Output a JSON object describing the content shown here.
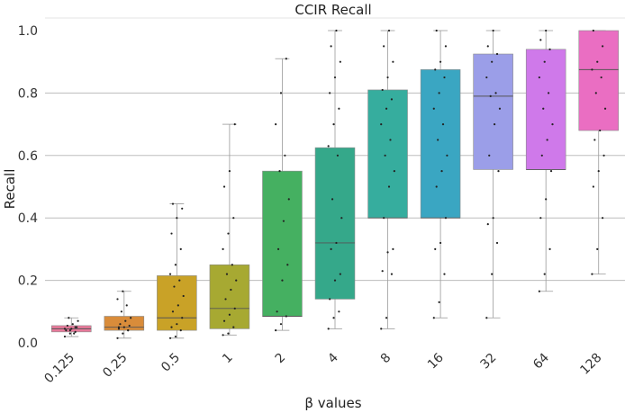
{
  "chart_data": {
    "type": "box",
    "title": "CCIR Recall",
    "xlabel": "β values",
    "ylabel": "Recall",
    "ylim": [
      0.0,
      1.0
    ],
    "yticks": [
      "0.0",
      "0.2",
      "0.4",
      "0.6",
      "0.8",
      "1.0"
    ],
    "categories": [
      "0.125",
      "0.25",
      "0.5",
      "1",
      "2",
      "4",
      "8",
      "16",
      "32",
      "64",
      "128"
    ],
    "colors": [
      "#e8799a",
      "#d98c3a",
      "#c9a227",
      "#a7a932",
      "#45b061",
      "#35a88a",
      "#36ad9e",
      "#3aa6c2",
      "#9b9ee8",
      "#cf79ea",
      "#ea6ec2"
    ],
    "boxes": [
      {
        "min": 0.02,
        "q1": 0.035,
        "median": 0.045,
        "q3": 0.055,
        "max": 0.08
      },
      {
        "min": 0.015,
        "q1": 0.04,
        "median": 0.05,
        "q3": 0.085,
        "max": 0.165
      },
      {
        "min": 0.015,
        "q1": 0.04,
        "median": 0.08,
        "q3": 0.215,
        "max": 0.445
      },
      {
        "min": 0.025,
        "q1": 0.045,
        "median": 0.11,
        "q3": 0.25,
        "max": 0.7
      },
      {
        "min": 0.04,
        "q1": 0.085,
        "median": 0.085,
        "q3": 0.55,
        "max": 0.91
      },
      {
        "min": 0.045,
        "q1": 0.14,
        "median": 0.32,
        "q3": 0.625,
        "max": 1.0
      },
      {
        "min": 0.045,
        "q1": 0.4,
        "median": 0.4,
        "q3": 0.81,
        "max": 1.0
      },
      {
        "min": 0.08,
        "q1": 0.4,
        "median": 0.4,
        "q3": 0.875,
        "max": 1.0
      },
      {
        "min": 0.08,
        "q1": 0.555,
        "median": 0.79,
        "q3": 0.925,
        "max": 1.0
      },
      {
        "min": 0.165,
        "q1": 0.555,
        "median": 0.555,
        "q3": 0.94,
        "max": 1.0
      },
      {
        "min": 0.22,
        "q1": 0.68,
        "median": 0.875,
        "q3": 1.0,
        "max": 1.0
      }
    ],
    "points": [
      [
        0.02,
        0.03,
        0.035,
        0.04,
        0.045,
        0.05,
        0.055,
        0.06,
        0.07,
        0.08,
        0.03,
        0.045,
        0.04,
        0.05
      ],
      [
        0.015,
        0.03,
        0.04,
        0.045,
        0.05,
        0.055,
        0.06,
        0.07,
        0.08,
        0.1,
        0.12,
        0.14,
        0.165,
        0.04,
        0.05
      ],
      [
        0.015,
        0.02,
        0.04,
        0.05,
        0.06,
        0.08,
        0.1,
        0.12,
        0.15,
        0.18,
        0.2,
        0.22,
        0.25,
        0.3,
        0.35,
        0.4,
        0.43,
        0.445
      ],
      [
        0.025,
        0.03,
        0.05,
        0.07,
        0.09,
        0.11,
        0.14,
        0.17,
        0.2,
        0.22,
        0.25,
        0.3,
        0.35,
        0.4,
        0.5,
        0.55,
        0.7
      ],
      [
        0.04,
        0.06,
        0.085,
        0.1,
        0.2,
        0.25,
        0.3,
        0.39,
        0.46,
        0.55,
        0.6,
        0.7,
        0.8,
        0.91
      ],
      [
        0.045,
        0.08,
        0.1,
        0.14,
        0.2,
        0.22,
        0.3,
        0.32,
        0.4,
        0.46,
        0.6,
        0.63,
        0.7,
        0.75,
        0.8,
        0.85,
        0.9,
        0.95,
        1.0
      ],
      [
        0.045,
        0.08,
        0.22,
        0.23,
        0.29,
        0.3,
        0.4,
        0.5,
        0.55,
        0.6,
        0.65,
        0.7,
        0.75,
        0.78,
        0.81,
        0.85,
        0.9,
        0.95,
        1.0
      ],
      [
        0.08,
        0.13,
        0.22,
        0.3,
        0.32,
        0.4,
        0.5,
        0.55,
        0.6,
        0.65,
        0.7,
        0.75,
        0.8,
        0.85,
        0.875,
        0.9,
        0.95,
        1.0
      ],
      [
        0.08,
        0.22,
        0.32,
        0.38,
        0.4,
        0.55,
        0.6,
        0.7,
        0.75,
        0.79,
        0.8,
        0.85,
        0.9,
        0.925,
        0.95,
        1.0
      ],
      [
        0.165,
        0.22,
        0.3,
        0.4,
        0.46,
        0.55,
        0.6,
        0.65,
        0.7,
        0.75,
        0.8,
        0.85,
        0.9,
        0.94,
        0.97,
        1.0
      ],
      [
        0.22,
        0.3,
        0.4,
        0.5,
        0.55,
        0.6,
        0.65,
        0.68,
        0.75,
        0.8,
        0.85,
        0.875,
        0.9,
        0.95,
        1.0
      ]
    ]
  }
}
